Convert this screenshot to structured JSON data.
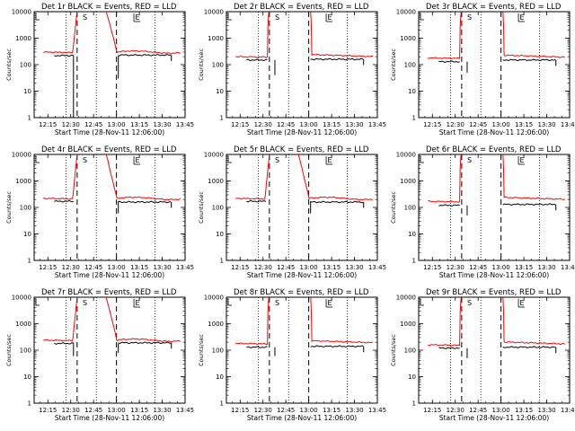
{
  "figure": {
    "layout": "3x3 grid of lightcurve panels",
    "colors": {
      "events": "#000000",
      "lld": "#ff0000",
      "background": "#ffffff"
    }
  },
  "chart_data": [
    {
      "type": "line",
      "title": "Det 1r BLACK = Events, RED = LLD",
      "xlabel": "Start Time (28-Nov-11 12:06:00)",
      "ylabel": "Counts/sec",
      "x_ticks": [
        "12:15",
        "12:30",
        "12:45",
        "13:00",
        "13:15",
        "13:30",
        "13:45"
      ],
      "y_ticks": [
        "1",
        "10",
        "100",
        "1000",
        "10000"
      ],
      "ylim": [
        1,
        10000
      ],
      "yscale": "log",
      "markers": [
        "S",
        "E"
      ],
      "series": [
        {
          "name": "BLACK = Events",
          "values_summary": "~220 before 12:35, gap, ~230 after 13:00"
        },
        {
          "name": "RED = LLD",
          "values_summary": "~300 baseline, peak >10000 12:37-12:52, ~300 after"
        }
      ],
      "profile": "A",
      "ev_pre": 220,
      "ev_post": 230,
      "lld_pre": 300,
      "lld_post": 300,
      "dips": [
        [
          12.53,
          1
        ],
        [
          13.02,
          30
        ]
      ]
    },
    {
      "type": "line",
      "title": "Det 2r BLACK = Events, RED = LLD",
      "xlabel": "Start Time (28-Nov-11 12:06:00)",
      "ylabel": "Counts/sec",
      "x_ticks": [
        "12:15",
        "12:30",
        "12:45",
        "13:00",
        "13:15",
        "13:30",
        "13:45"
      ],
      "y_ticks": [
        "1",
        "10",
        "100",
        "1000",
        "10000"
      ],
      "ylim": [
        1,
        10000
      ],
      "yscale": "log",
      "markers": [
        "S",
        "E"
      ],
      "series": [
        {
          "name": "BLACK = Events"
        },
        {
          "name": "RED = LLD"
        }
      ],
      "profile": "B",
      "ev_pre": 150,
      "ev_post": 160,
      "lld_pre": 200,
      "lld_post": 200,
      "dips": [
        [
          12.63,
          40
        ]
      ]
    },
    {
      "type": "line",
      "title": "Det 3r BLACK = Events, RED = LLD",
      "xlabel": "Start Time (28-Nov-11 12:06:00)",
      "ylabel": "Counts/sec",
      "x_ticks": [
        "12:15",
        "12:30",
        "12:45",
        "13:00",
        "13:15",
        "13:30",
        "13:45"
      ],
      "y_ticks": [
        "1",
        "10",
        "100",
        "1000",
        "10000"
      ],
      "ylim": [
        1,
        10000
      ],
      "yscale": "log",
      "markers": [
        "S",
        "E"
      ],
      "series": [
        {
          "name": "BLACK = Events"
        },
        {
          "name": "RED = LLD"
        }
      ],
      "profile": "B",
      "ev_pre": 130,
      "ev_post": 150,
      "lld_pre": 180,
      "lld_post": 190,
      "dips": [
        [
          12.63,
          50
        ]
      ]
    },
    {
      "type": "line",
      "title": "Det 4r BLACK = Events, RED = LLD",
      "xlabel": "Start Time (28-Nov-11 12:06:00)",
      "ylabel": "Counts/sec",
      "x_ticks": [
        "12:15",
        "12:30",
        "12:45",
        "13:00",
        "13:15",
        "13:30",
        "13:45"
      ],
      "y_ticks": [
        "1",
        "10",
        "100",
        "1000",
        "10000"
      ],
      "ylim": [
        1,
        10000
      ],
      "yscale": "log",
      "markers": [
        "S",
        "E"
      ],
      "series": [
        {
          "name": "BLACK = Events"
        },
        {
          "name": "RED = LLD"
        }
      ],
      "profile": "A",
      "ev_pre": 170,
      "ev_post": 160,
      "lld_pre": 220,
      "lld_post": 220,
      "dips": [
        [
          13.02,
          60
        ]
      ]
    },
    {
      "type": "line",
      "title": "Det 5r BLACK = Events, RED = LLD",
      "xlabel": "Start Time (28-Nov-11 12:06:00)",
      "ylabel": "Counts/sec",
      "x_ticks": [
        "12:15",
        "12:30",
        "12:45",
        "13:00",
        "13:15",
        "13:30",
        "13:45"
      ],
      "y_ticks": [
        "1",
        "10",
        "100",
        "1000",
        "10000"
      ],
      "ylim": [
        1,
        10000
      ],
      "yscale": "log",
      "markers": [
        "S",
        "E"
      ],
      "series": [
        {
          "name": "BLACK = Events"
        },
        {
          "name": "RED = LLD"
        }
      ],
      "profile": "A",
      "ev_pre": 170,
      "ev_post": 160,
      "lld_pre": 220,
      "lld_post": 220,
      "dips": [
        [
          13.02,
          60
        ]
      ]
    },
    {
      "type": "line",
      "title": "Det 6r BLACK = Events, RED = LLD",
      "xlabel": "Start Time (28-Nov-11 12:06:00)",
      "ylabel": "Counts/sec",
      "x_ticks": [
        "12:15",
        "12:30",
        "12:45",
        "13:00",
        "13:15",
        "13:30",
        "13:45"
      ],
      "y_ticks": [
        "1",
        "10",
        "100",
        "1000",
        "10000"
      ],
      "ylim": [
        1,
        10000
      ],
      "yscale": "log",
      "markers": [
        "S",
        "E"
      ],
      "series": [
        {
          "name": "BLACK = Events"
        },
        {
          "name": "RED = LLD"
        }
      ],
      "profile": "B",
      "ev_pre": 120,
      "ev_post": 130,
      "lld_pre": 170,
      "lld_post": 200,
      "dips": [
        [
          12.63,
          50
        ]
      ]
    },
    {
      "type": "line",
      "title": "Det 7r BLACK = Events, RED = LLD",
      "xlabel": "Start Time (28-Nov-11 12:06:00)",
      "ylabel": "Counts/sec",
      "x_ticks": [
        "12:15",
        "12:30",
        "12:45",
        "13:00",
        "13:15",
        "13:30",
        "13:45"
      ],
      "y_ticks": [
        "1",
        "10",
        "100",
        "1000",
        "10000"
      ],
      "ylim": [
        1,
        10000
      ],
      "yscale": "log",
      "markers": [
        "S",
        "E"
      ],
      "series": [
        {
          "name": "BLACK = Events"
        },
        {
          "name": "RED = LLD"
        }
      ],
      "profile": "A",
      "ev_pre": 180,
      "ev_post": 190,
      "lld_pre": 240,
      "lld_post": 240,
      "dips": [
        [
          12.53,
          60
        ],
        [
          13.02,
          80
        ]
      ]
    },
    {
      "type": "line",
      "title": "Det 8r BLACK = Events, RED = LLD",
      "xlabel": "Start Time (28-Nov-11 12:06:00)",
      "ylabel": "Counts/sec",
      "x_ticks": [
        "12:15",
        "12:30",
        "12:45",
        "13:00",
        "13:15",
        "13:30",
        "13:45"
      ],
      "y_ticks": [
        "1",
        "10",
        "100",
        "1000",
        "10000"
      ],
      "ylim": [
        1,
        10000
      ],
      "yscale": "log",
      "markers": [
        "S",
        "E"
      ],
      "series": [
        {
          "name": "BLACK = Events"
        },
        {
          "name": "RED = LLD"
        }
      ],
      "profile": "B",
      "ev_pre": 130,
      "ev_post": 140,
      "lld_pre": 180,
      "lld_post": 190,
      "dips": [
        [
          12.63,
          60
        ]
      ]
    },
    {
      "type": "line",
      "title": "Det 9r BLACK = Events, RED = LLD",
      "xlabel": "Start Time (28-Nov-11 12:06:00)",
      "ylabel": "Counts/sec",
      "x_ticks": [
        "12:15",
        "12:30",
        "12:45",
        "13:00",
        "13:15",
        "13:30",
        "13:45"
      ],
      "y_ticks": [
        "1",
        "10",
        "100",
        "1000",
        "10000"
      ],
      "ylim": [
        1,
        10000
      ],
      "yscale": "log",
      "markers": [
        "S",
        "E"
      ],
      "series": [
        {
          "name": "BLACK = Events"
        },
        {
          "name": "RED = LLD"
        }
      ],
      "profile": "B",
      "ev_pre": 120,
      "ev_post": 130,
      "lld_pre": 160,
      "lld_post": 170,
      "dips": [
        [
          12.63,
          50
        ]
      ]
    }
  ]
}
